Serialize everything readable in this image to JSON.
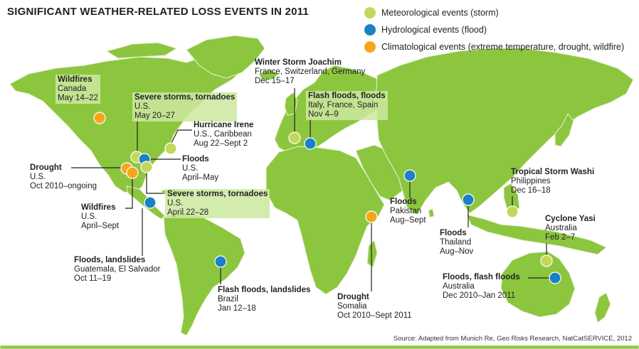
{
  "title": "SIGNIFICANT WEATHER-RELATED LOSS EVENTS IN 2011",
  "legend": [
    {
      "label": "Meteorological events (storm)",
      "color": "#c3d75a"
    },
    {
      "label": "Hydrological events (flood)",
      "color": "#1a82c4"
    },
    {
      "label": "Climatological events (extreme temperature, drought, wildfire)",
      "color": "#f7a61c"
    }
  ],
  "colors": {
    "land": "#8cc63f",
    "ocean": "#ffffff",
    "border": "#e8f3d4",
    "leader": "#222222"
  },
  "events": [
    {
      "id": "wildfires-canada",
      "type": "climatological",
      "title": "Wildfires",
      "location": "Canada",
      "date": "May 14–22"
    },
    {
      "id": "storms-us-may",
      "type": "meteorological",
      "title": "Severe storms, tornadoes",
      "location": "U.S.",
      "date": "May 20–27"
    },
    {
      "id": "hurricane-irene",
      "type": "meteorological",
      "title": "Hurricane Irene",
      "location": "U.S., Caribbean",
      "date": "Aug 22–Sept 2"
    },
    {
      "id": "floods-us",
      "type": "hydrological",
      "title": "Floods",
      "location": "U.S.",
      "date": "April–May"
    },
    {
      "id": "drought-us",
      "type": "climatological",
      "title": "Drought",
      "location": "U.S.",
      "date": "Oct 2010–ongoing"
    },
    {
      "id": "storms-us-april",
      "type": "meteorological",
      "title": "Severe storms, tornadoes",
      "location": "U.S.",
      "date": "April 22–28"
    },
    {
      "id": "wildfires-us",
      "type": "climatological",
      "title": "Wildfires",
      "location": "U.S.",
      "date": "April–Sept"
    },
    {
      "id": "floods-guatemala",
      "type": "hydrological",
      "title": "Floods, landslides",
      "location": "Guatemala, El Salvador",
      "date": "Oct 11–19"
    },
    {
      "id": "floods-brazil",
      "type": "hydrological",
      "title": "Flash floods, landslides",
      "location": "Brazil",
      "date": "Jan 12–18"
    },
    {
      "id": "storm-joachim",
      "type": "meteorological",
      "title": "Winter Storm Joachim",
      "location": "France, Switzerland, Germany",
      "date": "Dec 15–17"
    },
    {
      "id": "floods-europe",
      "type": "hydrological",
      "title": "Flash floods, floods",
      "location": "Italy, France, Spain",
      "date": "Nov 4–9"
    },
    {
      "id": "floods-pakistan",
      "type": "hydrological",
      "title": "Floods",
      "location": "Pakistan",
      "date": "Aug–Sept"
    },
    {
      "id": "floods-thailand",
      "type": "hydrological",
      "title": "Floods",
      "location": "Thailand",
      "date": "Aug–Nov"
    },
    {
      "id": "drought-somalia",
      "type": "climatological",
      "title": "Drought",
      "location": "Somalia",
      "date": "Oct 2010–Sept 2011"
    },
    {
      "id": "storm-washi",
      "type": "meteorological",
      "title": "Tropical Storm Washi",
      "location": "Philippines",
      "date": "Dec 16–18"
    },
    {
      "id": "cyclone-yasi",
      "type": "meteorological",
      "title": "Cyclone Yasi",
      "location": "Australia",
      "date": "Feb 2–7"
    },
    {
      "id": "floods-australia",
      "type": "hydrological",
      "title": "Floods, flash floods",
      "location": "Australia",
      "date": "Dec 2010–Jan 2011"
    }
  ],
  "source": "Source: Adapted from Munich Re, Geo Risks Research, NatCatSERVICE, 2012"
}
